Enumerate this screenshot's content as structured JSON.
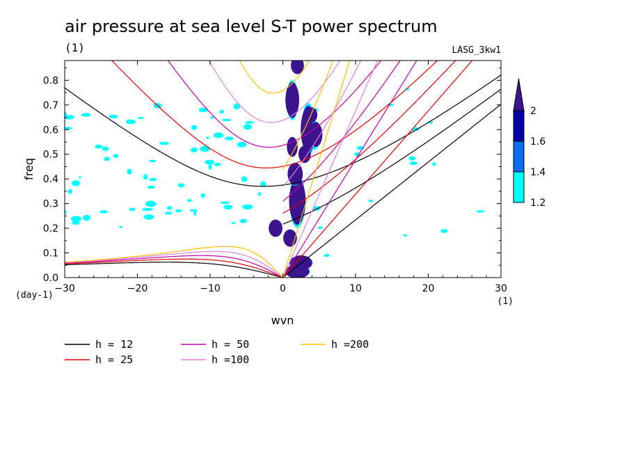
{
  "chart_data": {
    "type": "contour",
    "title": "air pressure at sea level S-T power spectrum",
    "subtitle_left": "(1)",
    "model_label": "LASG_3kw1",
    "xlabel": "wvn",
    "ylabel": "freq",
    "x_unit": "(1)",
    "y_unit": "(day-1)",
    "xlim": [
      -30,
      30
    ],
    "ylim": [
      0,
      0.88
    ],
    "xticks": [
      -30,
      -20,
      -10,
      0,
      10,
      20,
      30
    ],
    "yticks": [
      0.0,
      0.1,
      0.2,
      0.3,
      0.4,
      0.5,
      0.6,
      0.7,
      0.8
    ],
    "ytick_labels": [
      "0.0",
      "0.1",
      "0.2",
      "0.3",
      "0.4",
      "0.5",
      "0.6",
      "0.7",
      "0.8"
    ],
    "colorbar": {
      "levels": [
        1.2,
        1.4,
        1.6,
        2
      ],
      "level_labels": [
        "1.2",
        "1.4",
        "1.6",
        "2"
      ],
      "colors": [
        "#00ffff",
        "#0b6cf2",
        "#0000aa",
        "#3c1490"
      ],
      "extend": "max"
    },
    "dispersion_curves": [
      {
        "label": "h = 12",
        "h": 12,
        "color": "#000000"
      },
      {
        "label": "h = 25",
        "h": 25,
        "color": "#e00000"
      },
      {
        "label": "h = 50",
        "h": 50,
        "color": "#c000a8"
      },
      {
        "label": "h =100",
        "h": 100,
        "color": "#e080e0"
      },
      {
        "label": "h =200",
        "h": 200,
        "color": "#ffc000"
      }
    ],
    "spectral_peaks": [
      {
        "k": 2,
        "f": 0.025,
        "rx": 1.3,
        "ry": 0.018
      },
      {
        "k": 2.5,
        "f": 0.06,
        "rx": 1.2,
        "ry": 0.02
      },
      {
        "k": 1,
        "f": 0.16,
        "rx": 0.6,
        "ry": 0.025
      },
      {
        "k": 2,
        "f": 0.31,
        "rx": 0.8,
        "ry": 0.08
      },
      {
        "k": 1.7,
        "f": 0.42,
        "rx": 0.7,
        "ry": 0.035
      },
      {
        "k": 1.3,
        "f": 0.72,
        "rx": 0.6,
        "ry": 0.06
      },
      {
        "k": 2,
        "f": 0.86,
        "rx": 0.55,
        "ry": 0.025
      },
      {
        "k": -1,
        "f": 0.2,
        "rx": 0.6,
        "ry": 0.025
      },
      {
        "k": 3.5,
        "f": 0.6,
        "rx": 0.7,
        "ry": 0.08
      },
      {
        "k": 4.5,
        "f": 0.58,
        "rx": 0.6,
        "ry": 0.04
      },
      {
        "k": 3,
        "f": 0.5,
        "rx": 0.5,
        "ry": 0.025
      },
      {
        "k": 4,
        "f": 0.66,
        "rx": 0.4,
        "ry": 0.02
      },
      {
        "k": 1.3,
        "f": 0.53,
        "rx": 0.4,
        "ry": 0.03
      }
    ]
  }
}
